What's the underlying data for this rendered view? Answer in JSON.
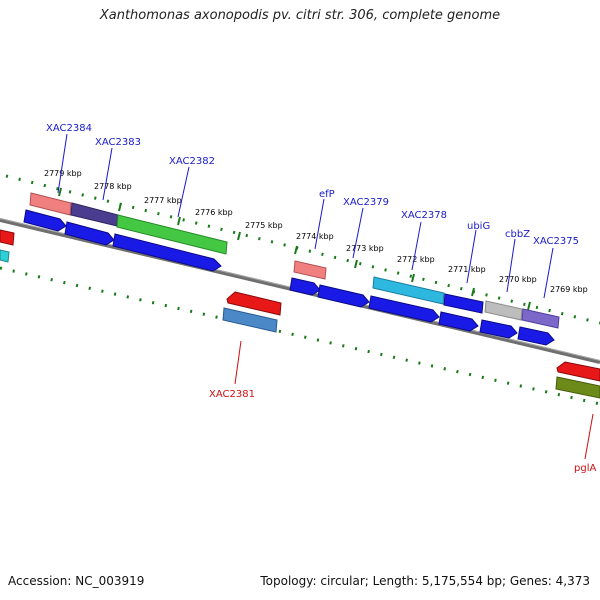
{
  "title": "Xanthomonas axonopodis pv. citri str. 306, complete genome",
  "footer": {
    "accession": "Accession: NC_003919",
    "topology": "Topology: circular; Length: 5,175,554 bp; Genes: 4,373"
  },
  "colors": {
    "backbone": "#777777",
    "ticks": "#1a7a1a",
    "label_plus": "#1a1acc",
    "label_minus": "#cc1111"
  },
  "kbp_labels": [
    "2779 kbp",
    "2778 kbp",
    "2777 kbp",
    "2776 kbp",
    "2775 kbp",
    "2774 kbp",
    "2773 kbp",
    "2772 kbp",
    "2771 kbp",
    "2770 kbp",
    "2769 kbp"
  ],
  "gene_labels": [
    {
      "name": "XAC2384",
      "strand": "plus"
    },
    {
      "name": "XAC2383",
      "strand": "plus"
    },
    {
      "name": "XAC2382",
      "strand": "plus"
    },
    {
      "name": "efP",
      "strand": "plus"
    },
    {
      "name": "XAC2379",
      "strand": "plus"
    },
    {
      "name": "XAC2378",
      "strand": "plus"
    },
    {
      "name": "ubiG",
      "strand": "plus"
    },
    {
      "name": "cbbZ",
      "strand": "plus"
    },
    {
      "name": "XAC2375",
      "strand": "plus"
    },
    {
      "name": "XAC2381",
      "strand": "minus"
    },
    {
      "name": "pglA",
      "strand": "minus"
    }
  ]
}
